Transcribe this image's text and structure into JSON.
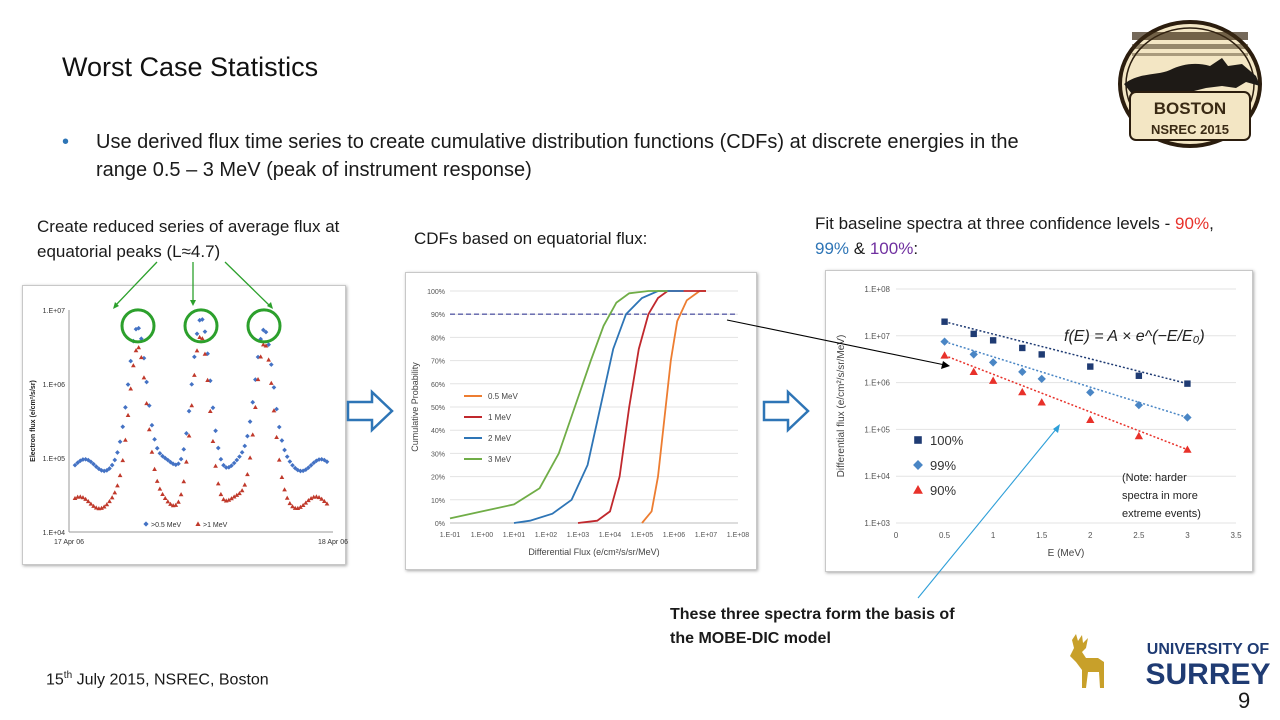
{
  "slide": {
    "title": "Worst Case Statistics",
    "bullet": "Use derived flux time series to create cumulative distribution functions (CDFs) at discrete energies in the range 0.5 – 3 MeV (peak of instrument response)",
    "caption_left": "Create reduced series of average flux at equatorial peaks (L≈4.7)",
    "caption_middle": "CDFs based on equatorial flux:",
    "caption_right_prefix": "Fit baseline spectra at three confidence levels - ",
    "caption_right_90": "90%",
    "caption_right_sep1": ", ",
    "caption_right_99": "99%",
    "caption_right_sep2": " & ",
    "caption_right_100": "100%",
    "caption_right_suffix": ":",
    "bottom_note": "These three spectra form the basis of the MOBE-DIC model",
    "footer_day": "15",
    "footer_sup": "th",
    "footer_rest": " July 2015, NSREC, Boston",
    "page_number": "9",
    "colors": {
      "red": "#e8312a",
      "blue": "#2e75b6",
      "purple": "#7030a0",
      "arrow_fill": "#ffffff",
      "arrow_stroke": "#2e75b6"
    }
  },
  "logos": {
    "nsrec": {
      "line1": "BOSTON",
      "line2": "NSREC 2015"
    },
    "surrey": {
      "line1": "UNIVERSITY OF",
      "line2": "SURREY"
    }
  },
  "chart_data": [
    {
      "type": "scatter",
      "title": "",
      "ylabel": "Electron flux (e/cm²/s/sr)",
      "xlabel": "",
      "y_scale": "log",
      "ylim": [
        10000,
        10000000
      ],
      "y_ticks": [
        "1.E+04",
        "1.E+05",
        "1.E+06",
        "1.E+07"
      ],
      "x_ticks": [
        "17 Apr 06",
        "18 Apr 06"
      ],
      "legend_position": "bottom-center",
      "series": [
        {
          "name": ">0.5 MeV",
          "color": "#4472c4",
          "marker": "diamond",
          "baseline": 80000,
          "peak": 6500000
        },
        {
          "name": ">1 MeV",
          "color": "#c0392b",
          "marker": "triangle",
          "baseline": 25000,
          "peak": 3800000
        }
      ],
      "peak_centers_fraction_of_day": [
        0.25,
        0.5,
        0.75
      ],
      "highlight_circles": 3
    },
    {
      "type": "line",
      "title": "",
      "xlabel": "Differential Flux (e/cm²/s/sr/MeV)",
      "ylabel": "Cumulative Probability",
      "x_scale": "log",
      "xlim_exponent": [
        -1,
        8
      ],
      "x_ticks": [
        "1.E-01",
        "1.E+00",
        "1.E+01",
        "1.E+02",
        "1.E+03",
        "1.E+04",
        "1.E+05",
        "1.E+06",
        "1.E+07",
        "1.E+08"
      ],
      "y_ticks": [
        "0%",
        "10%",
        "20%",
        "30%",
        "40%",
        "50%",
        "60%",
        "70%",
        "80%",
        "90%",
        "100%"
      ],
      "ylim": [
        0,
        1
      ],
      "reference_line_y": 0.9,
      "legend_position": "left",
      "series": [
        {
          "name": "0.5 MeV",
          "color": "#ed7d31",
          "points": [
            [
              5.0,
              0
            ],
            [
              5.3,
              0.05
            ],
            [
              5.5,
              0.2
            ],
            [
              5.7,
              0.45
            ],
            [
              5.9,
              0.7
            ],
            [
              6.1,
              0.87
            ],
            [
              6.4,
              0.96
            ],
            [
              6.8,
              1.0
            ],
            [
              7.0,
              1.0
            ]
          ]
        },
        {
          "name": "1 MeV",
          "color": "#c0282d",
          "points": [
            [
              3.0,
              0
            ],
            [
              3.6,
              0.01
            ],
            [
              4.0,
              0.05
            ],
            [
              4.3,
              0.2
            ],
            [
              4.6,
              0.5
            ],
            [
              4.9,
              0.75
            ],
            [
              5.2,
              0.9
            ],
            [
              5.5,
              0.97
            ],
            [
              5.8,
              1.0
            ],
            [
              7.0,
              1.0
            ]
          ]
        },
        {
          "name": "2 MeV",
          "color": "#2e75b6",
          "points": [
            [
              1.0,
              0
            ],
            [
              1.5,
              0.01
            ],
            [
              2.2,
              0.04
            ],
            [
              2.8,
              0.1
            ],
            [
              3.3,
              0.25
            ],
            [
              3.7,
              0.5
            ],
            [
              4.1,
              0.75
            ],
            [
              4.5,
              0.9
            ],
            [
              5.0,
              0.97
            ],
            [
              5.5,
              1.0
            ],
            [
              6.3,
              1.0
            ]
          ]
        },
        {
          "name": "3 MeV",
          "color": "#70ad47",
          "points": [
            [
              -1.0,
              0.02
            ],
            [
              0,
              0.05
            ],
            [
              1.0,
              0.08
            ],
            [
              1.8,
              0.15
            ],
            [
              2.4,
              0.3
            ],
            [
              2.9,
              0.5
            ],
            [
              3.4,
              0.7
            ],
            [
              3.8,
              0.85
            ],
            [
              4.2,
              0.95
            ],
            [
              4.6,
              0.99
            ],
            [
              5.2,
              1.0
            ],
            [
              5.8,
              1.0
            ]
          ]
        }
      ]
    },
    {
      "type": "scatter",
      "title": "",
      "xlabel": "E (MeV)",
      "ylabel": "Differential flux (e/cm²/s/sr/MeV)",
      "y_scale": "log",
      "xlim": [
        0,
        3.5
      ],
      "ylim_exponent": [
        3,
        8
      ],
      "x_ticks": [
        "0",
        "0.5",
        "1",
        "1.5",
        "2",
        "2.5",
        "3",
        "3.5"
      ],
      "y_ticks": [
        "1.E+03",
        "1.E+04",
        "1.E+05",
        "1.E+06",
        "1.E+07",
        "1.E+08"
      ],
      "legend_position": "bottom-left",
      "note": "(Note: harder spectra in more extreme events)",
      "formula": "f(E) = A × e^(−E/E₀)",
      "x": [
        0.5,
        0.8,
        1.0,
        1.3,
        1.5,
        2.0,
        2.5,
        3.0
      ],
      "series": [
        {
          "name": "100%",
          "color": "#1f3b73",
          "marker": "square",
          "values": [
            20000000,
            11000000,
            8000000,
            5500000,
            4000000,
            2200000,
            1400000,
            950000
          ]
        },
        {
          "name": "99%",
          "color": "#4a86c5",
          "marker": "diamond",
          "values": [
            7500000,
            4000000,
            2700000,
            1700000,
            1200000,
            620000,
            330000,
            180000
          ]
        },
        {
          "name": "90%",
          "color": "#e8312a",
          "marker": "triangle",
          "values": [
            3800000,
            1700000,
            1100000,
            630000,
            380000,
            160000,
            72000,
            37000
          ]
        }
      ]
    }
  ]
}
